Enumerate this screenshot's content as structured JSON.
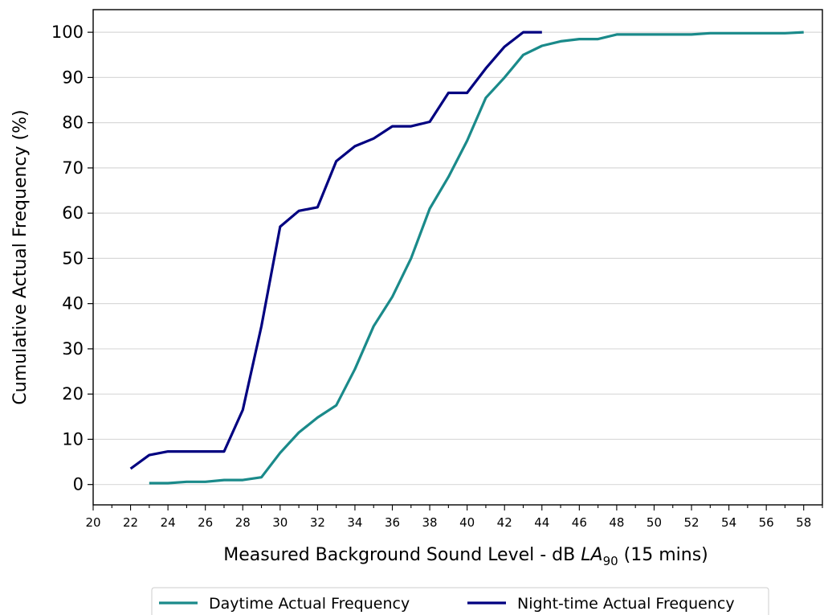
{
  "chart_data": {
    "type": "line",
    "title": "",
    "xlabel": {
      "prefix": "Measured Background Sound Level - dB ",
      "italic": "LA",
      "subscript": "90",
      "suffix": " (15 mins)"
    },
    "ylabel": "Cumulative Actual Frequency (%)",
    "xlim": [
      20,
      59
    ],
    "ylim": [
      -4.5,
      105
    ],
    "x_ticks": [
      20,
      22,
      24,
      26,
      28,
      30,
      32,
      34,
      36,
      38,
      40,
      42,
      44,
      46,
      48,
      50,
      52,
      54,
      56,
      58
    ],
    "y_ticks": [
      0,
      10,
      20,
      30,
      40,
      50,
      60,
      70,
      80,
      90,
      100
    ],
    "grid": {
      "y": true,
      "x": false
    },
    "legend_position": "bottom-center",
    "series": [
      {
        "name": "Daytime Actual Frequency",
        "color": "#1a8a8a",
        "x": [
          23,
          24,
          25,
          26,
          27,
          28,
          29,
          30,
          31,
          32,
          33,
          34,
          35,
          36,
          37,
          38,
          39,
          40,
          41,
          42,
          43,
          44,
          45,
          46,
          47,
          48,
          49,
          50,
          51,
          52,
          53,
          54,
          55,
          56,
          57,
          58
        ],
        "y": [
          0.3,
          0.3,
          0.6,
          0.6,
          1.0,
          1.0,
          1.6,
          7.0,
          11.5,
          14.8,
          17.5,
          25.5,
          35.0,
          41.5,
          50.0,
          61.0,
          68.0,
          76.0,
          85.5,
          90.0,
          95.0,
          97.0,
          98.0,
          98.5,
          98.5,
          99.5,
          99.5,
          99.5,
          99.5,
          99.5,
          99.8,
          99.8,
          99.8,
          99.8,
          99.8,
          100.0
        ]
      },
      {
        "name": "Night-time Actual Frequency",
        "color": "#000080",
        "x": [
          22,
          23,
          24,
          25,
          26,
          27,
          28,
          29,
          30,
          31,
          32,
          33,
          34,
          35,
          36,
          37,
          38,
          39,
          40,
          41,
          42,
          43,
          44
        ],
        "y": [
          3.5,
          6.5,
          7.3,
          7.3,
          7.3,
          7.3,
          16.5,
          35.0,
          57.0,
          60.5,
          61.3,
          71.5,
          74.8,
          76.5,
          79.2,
          79.2,
          80.2,
          86.6,
          86.6,
          92.0,
          96.8,
          100.0,
          100.0
        ]
      }
    ]
  }
}
